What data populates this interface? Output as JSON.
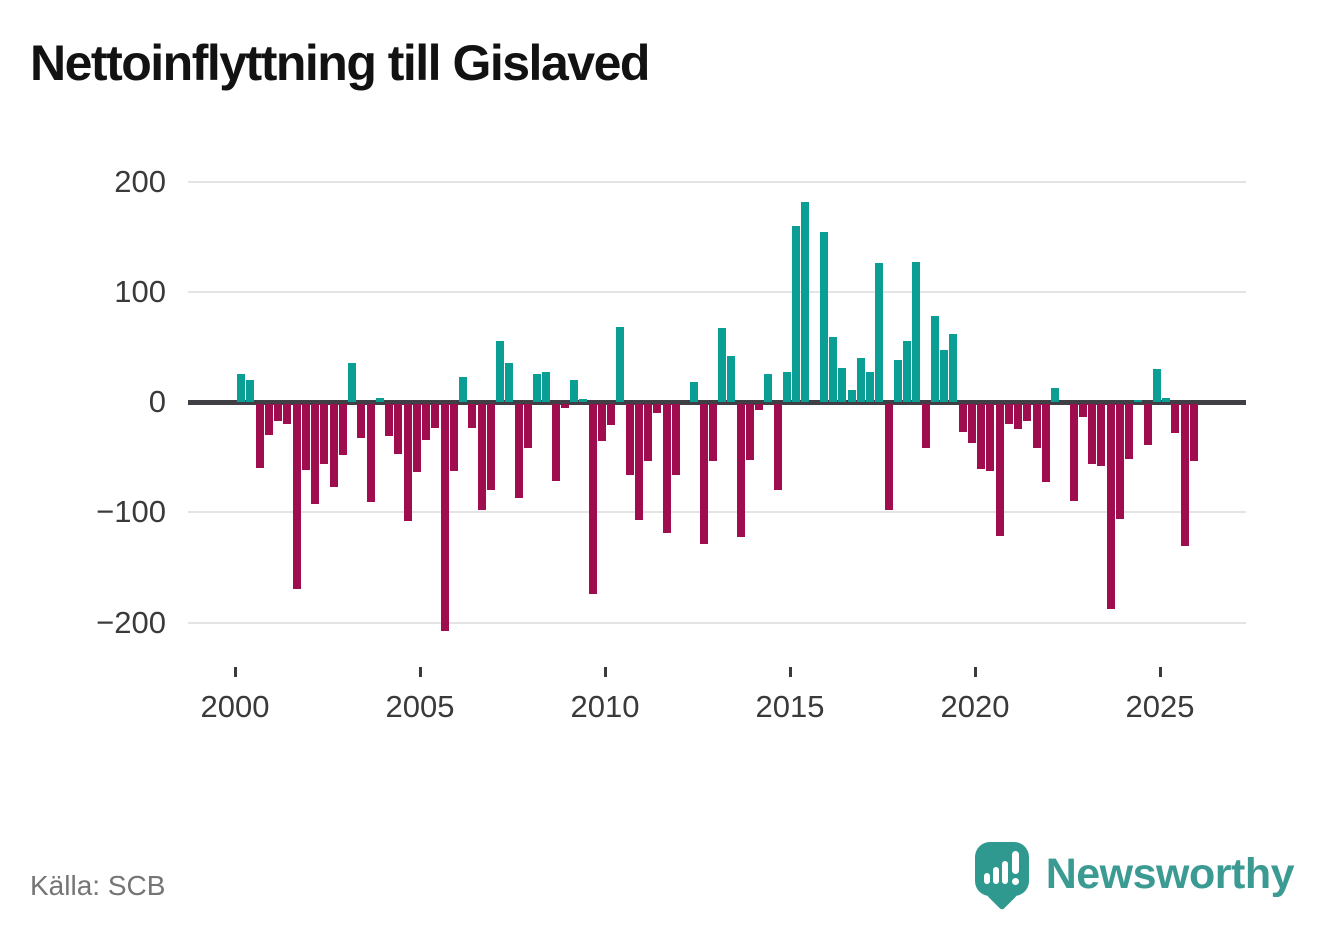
{
  "title": "Nettoinflyttning till Gislaved",
  "source": "Källa: SCB",
  "brand": "Newsworthy",
  "colors": {
    "positive": "#0b9e95",
    "negative": "#a00d4e",
    "axis": "#3f3f45",
    "gridline": "#e4e4e4",
    "tick_label": "#3a3a3a",
    "brand_teal": "#3b9b93"
  },
  "chart_data": {
    "type": "bar",
    "title": "Nettoinflyttning till Gislaved",
    "xlabel": "",
    "ylabel": "",
    "ylim": [
      -230,
      215
    ],
    "y_ticks": [
      200,
      100,
      0,
      -100,
      -200
    ],
    "y_tick_labels": [
      "200",
      "100",
      "0",
      "−100",
      "−200"
    ],
    "x_ticks": [
      2000,
      2005,
      2010,
      2015,
      2020,
      2025
    ],
    "x_tick_labels": [
      "2000",
      "2005",
      "2010",
      "2015",
      "2020",
      "2025"
    ],
    "grid": "horizontal",
    "legend": "none",
    "frequency": "quarterly",
    "start": "2000Q1",
    "end": "2025Q4",
    "categories": [
      "2000Q1",
      "2000Q2",
      "2000Q3",
      "2000Q4",
      "2001Q1",
      "2001Q2",
      "2001Q3",
      "2001Q4",
      "2002Q1",
      "2002Q2",
      "2002Q3",
      "2002Q4",
      "2003Q1",
      "2003Q2",
      "2003Q3",
      "2003Q4",
      "2004Q1",
      "2004Q2",
      "2004Q3",
      "2004Q4",
      "2005Q1",
      "2005Q2",
      "2005Q3",
      "2005Q4",
      "2006Q1",
      "2006Q2",
      "2006Q3",
      "2006Q4",
      "2007Q1",
      "2007Q2",
      "2007Q3",
      "2007Q4",
      "2008Q1",
      "2008Q2",
      "2008Q3",
      "2008Q4",
      "2009Q1",
      "2009Q2",
      "2009Q3",
      "2009Q4",
      "2010Q1",
      "2010Q2",
      "2010Q3",
      "2010Q4",
      "2011Q1",
      "2011Q2",
      "2011Q3",
      "2011Q4",
      "2012Q1",
      "2012Q2",
      "2012Q3",
      "2012Q4",
      "2013Q1",
      "2013Q2",
      "2013Q3",
      "2013Q4",
      "2014Q1",
      "2014Q2",
      "2014Q3",
      "2014Q4",
      "2015Q1",
      "2015Q2",
      "2015Q3",
      "2015Q4",
      "2016Q1",
      "2016Q2",
      "2016Q3",
      "2016Q4",
      "2017Q1",
      "2017Q2",
      "2017Q3",
      "2017Q4",
      "2018Q1",
      "2018Q2",
      "2018Q3",
      "2018Q4",
      "2019Q1",
      "2019Q2",
      "2019Q3",
      "2019Q4",
      "2020Q1",
      "2020Q2",
      "2020Q3",
      "2020Q4",
      "2021Q1",
      "2021Q2",
      "2021Q3",
      "2021Q4",
      "2022Q1",
      "2022Q2",
      "2022Q3",
      "2022Q4",
      "2023Q1",
      "2023Q2",
      "2023Q3",
      "2023Q4",
      "2024Q1",
      "2024Q2",
      "2024Q3",
      "2024Q4",
      "2025Q1",
      "2025Q2",
      "2025Q3",
      "2025Q4"
    ],
    "values": [
      25,
      20,
      -58,
      -28,
      -15,
      -18,
      -168,
      -60,
      -91,
      -54,
      -75,
      -46,
      35,
      -31,
      -89,
      4,
      -29,
      -45,
      -106,
      -62,
      -33,
      -22,
      -206,
      -61,
      23,
      -22,
      -96,
      -78,
      55,
      35,
      -85,
      -40,
      25,
      27,
      -70,
      -4,
      20,
      3,
      -172,
      -34,
      -19,
      68,
      -64,
      -105,
      -52,
      -8,
      -117,
      -64,
      0,
      18,
      -127,
      -52,
      67,
      42,
      -121,
      -51,
      -5,
      25,
      -78,
      27,
      160,
      181,
      0,
      154,
      59,
      31,
      11,
      40,
      27,
      126,
      -96,
      38,
      55,
      127,
      -40,
      78,
      47,
      62,
      -25,
      -35,
      -59,
      -61,
      -120,
      -18,
      -23,
      -15,
      -40,
      -71,
      13,
      0,
      -88,
      -12,
      -54,
      -56,
      -186,
      -104,
      -50,
      2,
      -37,
      30,
      4,
      -26,
      -129,
      -52
    ]
  }
}
